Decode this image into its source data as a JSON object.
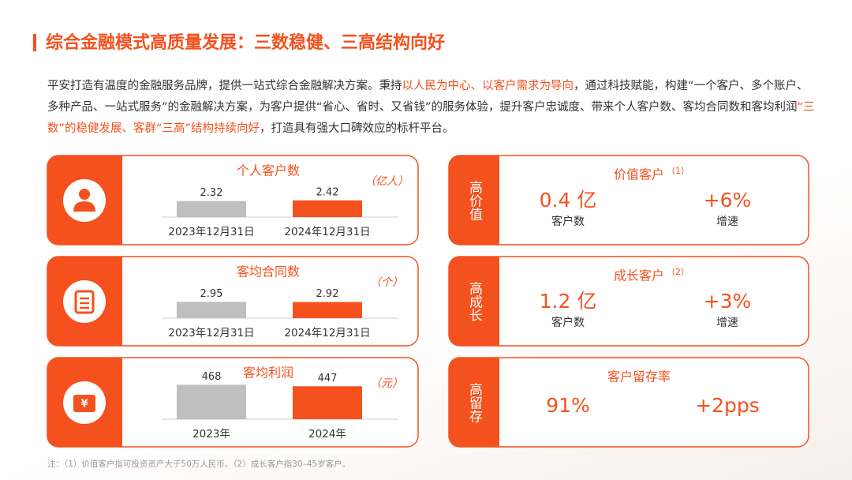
{
  "title": "综合金融模式高质量发展：三数稳健、三高结构向好",
  "intro": [
    {
      "text": "平安打造有温度的金融服务品牌，提供一站式综合金融解决方案。秉持",
      "highlight": false
    },
    {
      "text": "以人民为中心、以客户需求为导向",
      "highlight": true
    },
    {
      "text": "，通过科技赋能，构建“一个客户、多个账户、多种产品、一站式服务”的金融解决方案，为客户提供“省心、省时、又省钱”的服务体验，提升客户忠诚度、带来个人客户数、客均合同数和客均利润",
      "highlight": false
    },
    {
      "text": "“三数”的稳健发展、客群“三高”结构持续向好",
      "highlight": true
    },
    {
      "text": "，打造具有强大口碑效应的标杆平台。",
      "highlight": false
    }
  ],
  "metrics": [
    {
      "title": "个人客户数",
      "unit": "（亿人）",
      "categories": [
        "2023年12月31日",
        "2024年12月31日"
      ],
      "values": [
        2.32,
        2.42
      ],
      "ylim": [
        0,
        8
      ]
    },
    {
      "title": "客均合同数",
      "unit": "（个）",
      "categories": [
        "2023年12月31日",
        "2024年12月31日"
      ],
      "values": [
        2.95,
        2.92
      ],
      "ylim": [
        0,
        10
      ]
    },
    {
      "title": "客均利润",
      "unit": "（元）",
      "categories": [
        "2023年",
        "2024年"
      ],
      "values": [
        468,
        447
      ],
      "ylim": [
        0,
        750
      ]
    }
  ],
  "colors": [
    "#bfbfbf",
    "#f4511e"
  ],
  "segments": [
    {
      "label": "高价值",
      "title": "价值客户",
      "note": "（1）",
      "items": [
        {
          "value": "0.4 亿",
          "label": "客户数"
        },
        {
          "value": "+6%",
          "label": "增速"
        }
      ]
    },
    {
      "label": "高成长",
      "title": "成长客户",
      "note": "（2）",
      "items": [
        {
          "value": "1.2 亿",
          "label": "客户数"
        },
        {
          "value": "+3%",
          "label": "增速"
        }
      ]
    },
    {
      "label": "高留存",
      "title": "客户留存率",
      "items": [
        {
          "value": "91%"
        },
        {
          "value": "+2pps"
        }
      ]
    }
  ],
  "footnote": "注：（1）价值客户指可投资资产大于50万人民币。（2）成长客户指30–45岁客户。"
}
